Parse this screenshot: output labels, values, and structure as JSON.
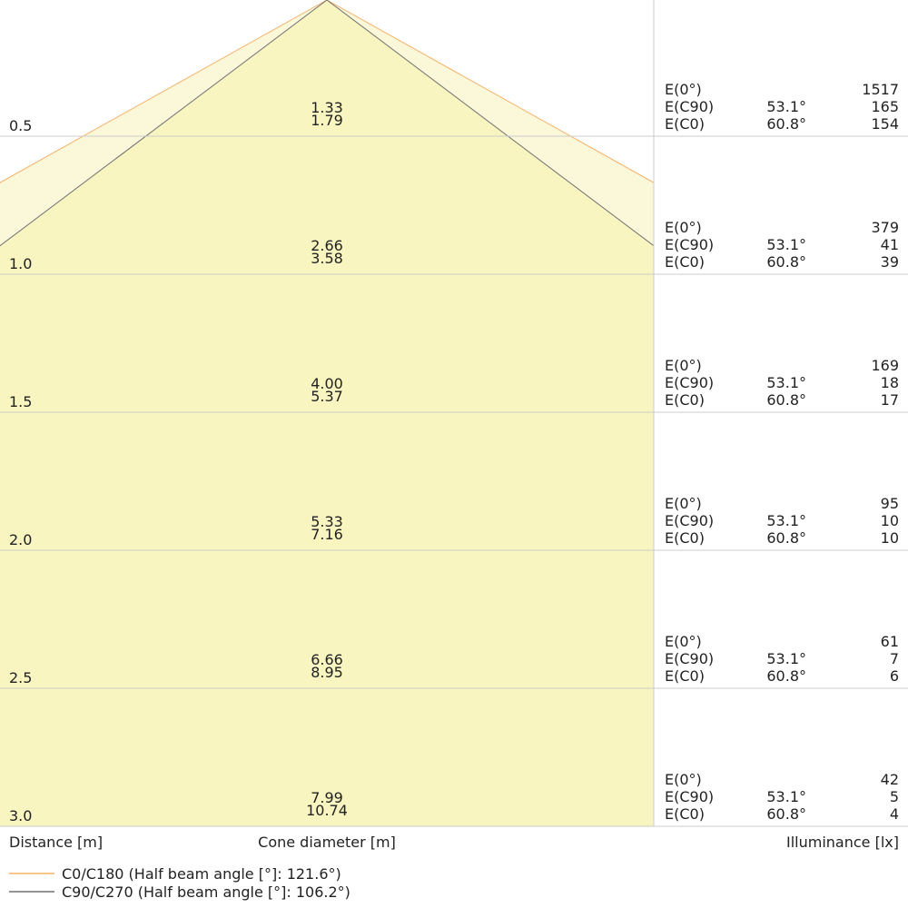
{
  "rows": [
    {
      "distance": "0.5",
      "diameter_c90": "1.33",
      "diameter_c0": "1.79",
      "e0": "1517",
      "ec90_angle": "53.1°",
      "ec90": "165",
      "ec0_angle": "60.8°",
      "ec0": "154"
    },
    {
      "distance": "1.0",
      "diameter_c90": "2.66",
      "diameter_c0": "3.58",
      "e0": "379",
      "ec90_angle": "53.1°",
      "ec90": "41",
      "ec0_angle": "60.8°",
      "ec0": "39"
    },
    {
      "distance": "1.5",
      "diameter_c90": "4.00",
      "diameter_c0": "5.37",
      "e0": "169",
      "ec90_angle": "53.1°",
      "ec90": "18",
      "ec0_angle": "60.8°",
      "ec0": "17"
    },
    {
      "distance": "2.0",
      "diameter_c90": "5.33",
      "diameter_c0": "7.16",
      "e0": "95",
      "ec90_angle": "53.1°",
      "ec90": "10",
      "ec0_angle": "60.8°",
      "ec0": "10"
    },
    {
      "distance": "2.5",
      "diameter_c90": "6.66",
      "diameter_c0": "8.95",
      "e0": "61",
      "ec90_angle": "53.1°",
      "ec90": "7",
      "ec0_angle": "60.8°",
      "ec0": "6"
    },
    {
      "distance": "3.0",
      "diameter_c90": "7.99",
      "diameter_c0": "10.74",
      "e0": "42",
      "ec90_angle": "53.1°",
      "ec90": "5",
      "ec0_angle": "60.8°",
      "ec0": "4"
    }
  ],
  "labels": {
    "e0": "E(0°)",
    "ec90": "E(C90)",
    "ec0": "E(C0)"
  },
  "footer": {
    "distance": "Distance [m]",
    "diameter": "Cone diameter [m]",
    "illuminance": "Illuminance [lx]"
  },
  "legend": [
    {
      "text": "C0/C180 (Half beam angle [°]: 121.6°)",
      "color": "#f5b26b"
    },
    {
      "text": "C90/C270 (Half beam angle [°]: 106.2°)",
      "color": "#707070"
    }
  ]
}
